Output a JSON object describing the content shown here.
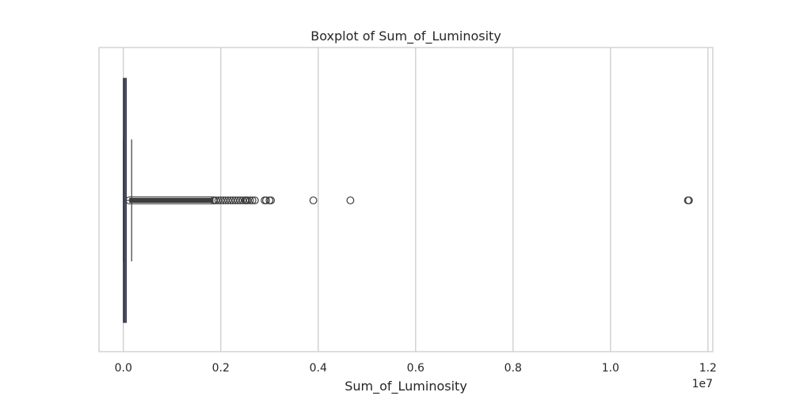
{
  "chart_data": {
    "type": "boxplot",
    "title": "Boxplot of Sum_of_Luminosity",
    "xlabel": "Sum_of_Luminosity",
    "ylabel": "",
    "x_scale_label": "1e7",
    "xlim": [
      -0.05,
      1.21
    ],
    "x_ticks": [
      0.0,
      0.2,
      0.4,
      0.6,
      0.8,
      1.0,
      1.2
    ],
    "x_tick_labels": [
      "0.0",
      "0.2",
      "0.4",
      "0.6",
      "0.8",
      "1.0",
      "1.2"
    ],
    "grid": true,
    "orientation": "horizontal",
    "colors": {
      "box_fill": "#4c5a7c",
      "box_edge": "#3a3a4a",
      "line": "#3a3a4a",
      "outlier_edge": "#3d3d3d",
      "grid": "#cccccc",
      "frame": "#cccccc"
    },
    "box": {
      "whisker_low": 0.0,
      "q1": 0.0,
      "median": 0.002,
      "q3": 0.006,
      "whisker_high": 0.017
    },
    "outliers_dense_range": [
      0.012,
      0.185
    ],
    "outliers": [
      0.186,
      0.19,
      0.195,
      0.2,
      0.205,
      0.21,
      0.215,
      0.22,
      0.225,
      0.23,
      0.235,
      0.24,
      0.245,
      0.25,
      0.252,
      0.255,
      0.26,
      0.265,
      0.27,
      0.29,
      0.293,
      0.3,
      0.303,
      0.39,
      0.466,
      1.159,
      1.161
    ]
  }
}
